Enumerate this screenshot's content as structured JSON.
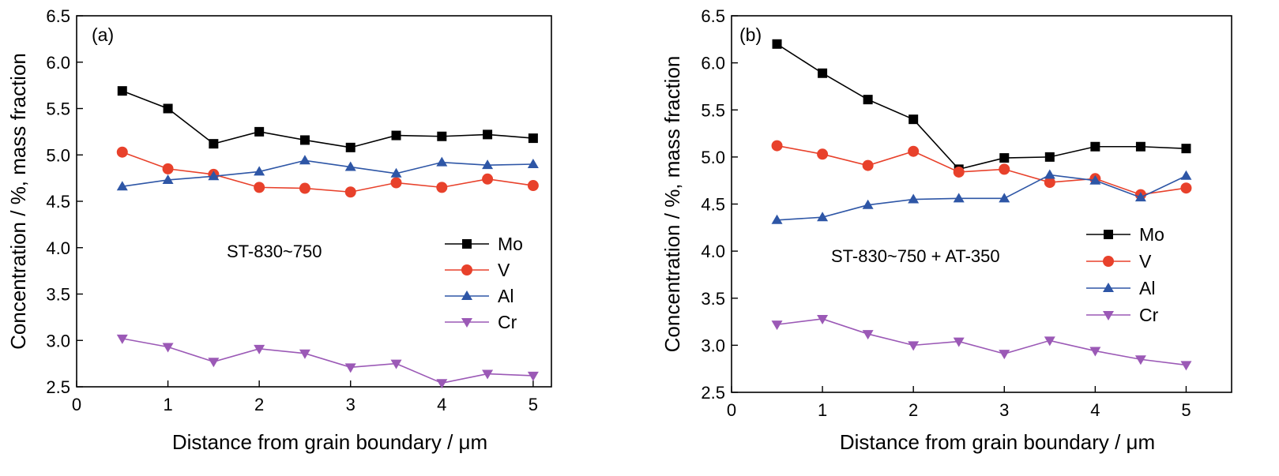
{
  "chart_data": [
    {
      "type": "line",
      "panel_label": "(a)",
      "annotation": "ST-830~750",
      "xlabel": "Distance from grain boundary / μm",
      "ylabel": "Concentration / %, mass fraction",
      "xlim": [
        0,
        5.2
      ],
      "ylim": [
        2.5,
        6.5
      ],
      "xticks": [
        0,
        1,
        2,
        3,
        4,
        5
      ],
      "yticks": [
        2.5,
        3.0,
        3.5,
        4.0,
        4.5,
        5.0,
        5.5,
        6.0,
        6.5
      ],
      "ytick_labels": [
        "2.5",
        "3.0",
        "3.5",
        "4.0",
        "4.5",
        "5.0",
        "5.5",
        "6.0",
        "6.5"
      ],
      "legend": "center-right",
      "x": [
        0.5,
        1,
        1.5,
        2,
        2.5,
        3,
        3.5,
        4,
        4.5,
        5
      ],
      "series": [
        {
          "name": "Mo",
          "marker": "square",
          "color": "#000000",
          "values": [
            5.69,
            5.5,
            5.12,
            5.25,
            5.16,
            5.08,
            5.21,
            5.2,
            5.22,
            5.18
          ]
        },
        {
          "name": "V",
          "marker": "circle",
          "color": "#e8412b",
          "values": [
            5.03,
            4.85,
            4.79,
            4.65,
            4.64,
            4.6,
            4.7,
            4.65,
            4.74,
            4.67
          ]
        },
        {
          "name": "Al",
          "marker": "triangle-up",
          "color": "#2e56a6",
          "values": [
            4.66,
            4.73,
            4.77,
            4.82,
            4.94,
            4.87,
            4.8,
            4.92,
            4.89,
            4.9
          ]
        },
        {
          "name": "Cr",
          "marker": "triangle-down",
          "color": "#9b59b6",
          "values": [
            3.02,
            2.93,
            2.77,
            2.91,
            2.86,
            2.71,
            2.75,
            2.54,
            2.64,
            2.62
          ]
        }
      ]
    },
    {
      "type": "line",
      "panel_label": "(b)",
      "annotation": "ST-830~750 + AT-350",
      "xlabel": "Distance from grain boundary / μm",
      "ylabel": "Concentration / %, mass fraction",
      "xlim": [
        0,
        5.5
      ],
      "ylim": [
        2.5,
        6.5
      ],
      "xticks": [
        0,
        1,
        2,
        3,
        4,
        5
      ],
      "yticks": [
        2.5,
        3.0,
        3.5,
        4.0,
        4.5,
        5.0,
        5.5,
        6.0,
        6.5
      ],
      "ytick_labels": [
        "2.5",
        "3.0",
        "3.5",
        "4.0",
        "4.5",
        "5.0",
        "5.5",
        "6.0",
        "6.5"
      ],
      "legend": "center-right",
      "x": [
        0.5,
        1,
        1.5,
        2,
        2.5,
        3,
        3.5,
        4,
        4.5,
        5
      ],
      "series": [
        {
          "name": "Mo",
          "marker": "square",
          "color": "#000000",
          "values": [
            6.2,
            5.89,
            5.61,
            5.4,
            4.87,
            4.99,
            5.0,
            5.11,
            5.11,
            5.09
          ]
        },
        {
          "name": "V",
          "marker": "circle",
          "color": "#e8412b",
          "values": [
            5.12,
            5.03,
            4.91,
            5.06,
            4.84,
            4.87,
            4.73,
            4.77,
            4.6,
            4.67
          ]
        },
        {
          "name": "Al",
          "marker": "triangle-up",
          "color": "#2e56a6",
          "values": [
            4.33,
            4.36,
            4.49,
            4.55,
            4.56,
            4.56,
            4.81,
            4.75,
            4.57,
            4.8
          ]
        },
        {
          "name": "Cr",
          "marker": "triangle-down",
          "color": "#9b59b6",
          "values": [
            3.22,
            3.28,
            3.12,
            3.0,
            3.04,
            2.91,
            3.05,
            2.94,
            2.85,
            2.79
          ]
        }
      ]
    }
  ]
}
